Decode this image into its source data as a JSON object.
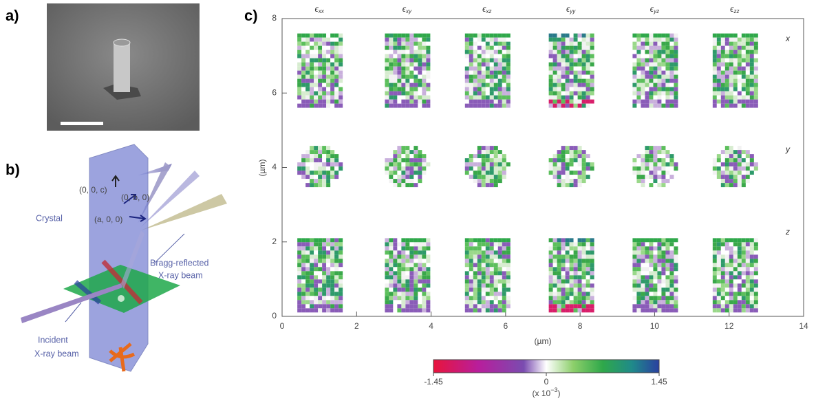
{
  "panels": {
    "a": {
      "label": "a)"
    },
    "b": {
      "label": "b)",
      "axes": [
        "(0, 0, c)",
        "(0, b, 0)",
        "(a, 0, 0)"
      ],
      "crystal": "Crystal",
      "bragg": [
        "Bragg-reflected",
        "X-ray beam"
      ],
      "incident": [
        "Incident",
        "X-ray beam"
      ]
    },
    "c": {
      "label": "c)",
      "columns": [
        {
          "symbol": "ϵ",
          "sub": "xx"
        },
        {
          "symbol": "ϵ",
          "sub": "xy"
        },
        {
          "symbol": "ϵ",
          "sub": "xz"
        },
        {
          "symbol": "ϵ",
          "sub": "yy"
        },
        {
          "symbol": "ϵ",
          "sub": "yz"
        },
        {
          "symbol": "ϵ",
          "sub": "zz"
        }
      ],
      "rows": [
        "x",
        "y",
        "z"
      ],
      "x_label": "(µm)",
      "y_label": "(µm)",
      "xlim": [
        0,
        14
      ],
      "xticks": [
        0,
        2,
        4,
        6,
        8,
        10,
        12,
        14
      ],
      "ylim": [
        0,
        8
      ],
      "yticks": [
        0,
        2,
        4,
        6,
        8
      ],
      "colorbar": {
        "lim": [
          -1.45,
          1.45
        ],
        "ticks": [
          -1.45,
          0,
          1.45
        ],
        "unit": [
          "(x 10",
          "−3",
          ")"
        ]
      }
    }
  }
}
